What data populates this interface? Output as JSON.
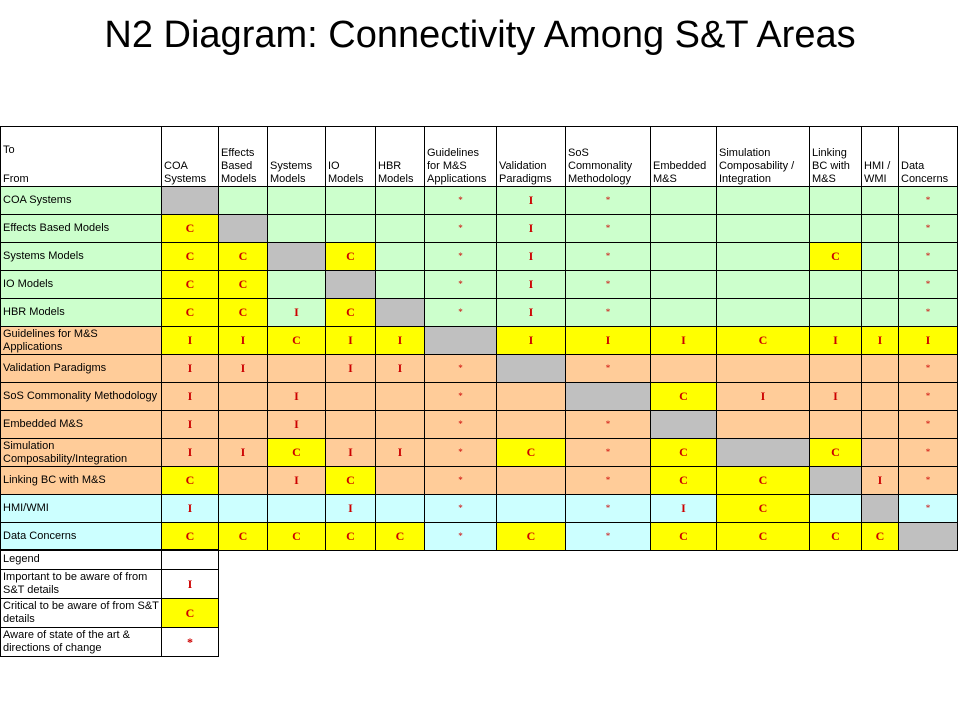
{
  "title": "N2 Diagram: Connectivity Among S&T Areas",
  "corner": {
    "to": "To",
    "from": "From"
  },
  "colors": {
    "green": "#ccffcc",
    "orange": "#ffcc99",
    "cyan": "#ccffff",
    "yellow": "#ffff00",
    "gray": "#c0c0c0",
    "white": "#ffffff",
    "symbol_red": "#cc0000"
  },
  "columns": [
    {
      "name": "col-coa-systems",
      "label": "COA Systems"
    },
    {
      "name": "col-effects-based-models",
      "label": "Effects Based Models"
    },
    {
      "name": "col-systems-models",
      "label": "Systems Models"
    },
    {
      "name": "col-io-models",
      "label": "IO Models"
    },
    {
      "name": "col-hbr-models",
      "label": "HBR Models"
    },
    {
      "name": "col-guidelines",
      "label": "Guidelines for M&S Applications"
    },
    {
      "name": "col-validation-paradigms",
      "label": "Validation Paradigms"
    },
    {
      "name": "col-sos-commonality",
      "label": "SoS Commonality Methodology"
    },
    {
      "name": "col-embedded-ms",
      "label": "Embedded M&S"
    },
    {
      "name": "col-simulation-composability",
      "label": "Simulation Composability / Integration"
    },
    {
      "name": "col-linking-bc",
      "label": "Linking BC with M&S"
    },
    {
      "name": "col-hmi-wmi",
      "label": "HMI / WMI"
    },
    {
      "name": "col-data-concerns",
      "label": "Data Concerns"
    }
  ],
  "rows": [
    {
      "name": "coa-systems",
      "label": "COA Systems",
      "color": "green",
      "cells": [
        "-",
        "",
        "",
        "",
        "",
        "*",
        "I",
        "*",
        "",
        "",
        "",
        "",
        "*"
      ]
    },
    {
      "name": "effects-based-models",
      "label": "Effects Based Models",
      "color": "green",
      "cells": [
        "C",
        "-",
        "",
        "",
        "",
        "*",
        "I",
        "*",
        "",
        "",
        "",
        "",
        "*"
      ]
    },
    {
      "name": "systems-models",
      "label": "Systems Models",
      "color": "green",
      "cells": [
        "C",
        "C",
        "-",
        "C",
        "",
        "*",
        "I",
        "*",
        "",
        "",
        "C",
        "",
        "*"
      ]
    },
    {
      "name": "io-models",
      "label": "IO Models",
      "color": "green",
      "cells": [
        "C",
        "C",
        "",
        "-",
        "",
        "*",
        "I",
        "*",
        "",
        "",
        "",
        "",
        "*"
      ]
    },
    {
      "name": "hbr-models",
      "label": "HBR Models",
      "color": "green",
      "cells": [
        "C",
        "C",
        "I",
        "C",
        "-",
        "*",
        "I",
        "*",
        "",
        "",
        "",
        "",
        "*"
      ]
    },
    {
      "name": "guidelines",
      "label": "Guidelines for M&S Applications",
      "color": "orange",
      "cells": [
        "I",
        "I",
        "C",
        "I",
        "I",
        "-",
        "I",
        "I",
        "I",
        "C",
        "I",
        "I",
        "I"
      ]
    },
    {
      "name": "validation-paradigms",
      "label": "Validation Paradigms",
      "color": "orange",
      "cells": [
        "I",
        "I",
        "",
        "I",
        "I",
        "*",
        "-",
        "*",
        "",
        "",
        "",
        "",
        "*"
      ]
    },
    {
      "name": "sos-commonality",
      "label": "SoS Commonality Methodology",
      "color": "orange",
      "cells": [
        "I",
        "",
        "I",
        "",
        "",
        "*",
        "",
        "-",
        "C",
        "I",
        "I",
        "",
        "*"
      ]
    },
    {
      "name": "embedded-ms",
      "label": "Embedded M&S",
      "color": "orange",
      "cells": [
        "I",
        "",
        "I",
        "",
        "",
        "*",
        "",
        "*",
        "-",
        "",
        "",
        "",
        "*"
      ]
    },
    {
      "name": "simulation-composability",
      "label": "Simulation Composability/Integration",
      "color": "orange",
      "cells": [
        "I",
        "I",
        "C",
        "I",
        "I",
        "*",
        "C",
        "*",
        "C",
        "-",
        "C",
        "",
        "*"
      ]
    },
    {
      "name": "linking-bc",
      "label": "Linking BC with M&S",
      "color": "orange",
      "cells": [
        "C",
        "",
        "I",
        "C",
        "",
        "*",
        "",
        "*",
        "C",
        "C",
        "-",
        "I",
        "*"
      ]
    },
    {
      "name": "hmi-wmi",
      "label": "HMI/WMI",
      "color": "cyan",
      "cells": [
        "I",
        "",
        "",
        "I",
        "",
        "*",
        "",
        "*",
        "I",
        "C",
        "",
        "-",
        "*"
      ]
    },
    {
      "name": "data-concerns",
      "label": "Data Concerns",
      "color": "cyan",
      "cells": [
        "C",
        "C",
        "C",
        "C",
        "C",
        "*",
        "C",
        "*",
        "C",
        "C",
        "C",
        "C",
        "-"
      ]
    }
  ],
  "legend": {
    "title": "Legend",
    "items": [
      {
        "name": "important",
        "symbol": "I",
        "label": "Important to be aware of from S&T details"
      },
      {
        "name": "critical",
        "symbol": "C",
        "label": "Critical to be aware of from S&T details"
      },
      {
        "name": "aware",
        "symbol": "*",
        "label": "Aware of state of the art & directions of change"
      }
    ]
  }
}
